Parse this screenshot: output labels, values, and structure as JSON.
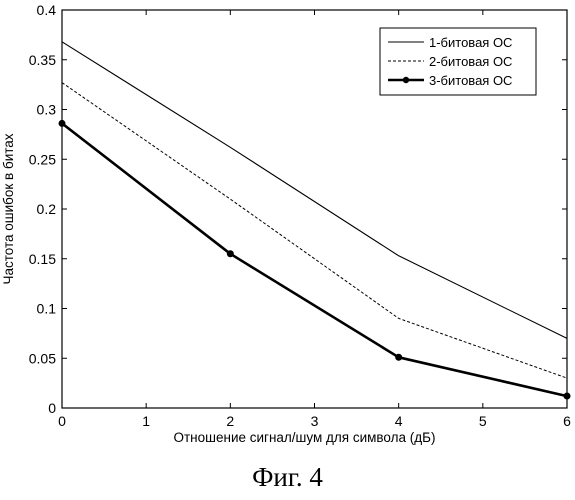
{
  "caption": "Фиг. 4",
  "chart_data": {
    "type": "line",
    "title": "",
    "xlabel": "Отношение сигнал/шум для символа (дБ)",
    "ylabel": "Частота ошибок в битах",
    "xlim": [
      0,
      6
    ],
    "ylim": [
      0,
      0.4
    ],
    "x_ticks": [
      0,
      1,
      2,
      3,
      4,
      5,
      6
    ],
    "x_tick_labels": [
      "0",
      "1",
      "2",
      "3",
      "4",
      "5",
      "6"
    ],
    "y_ticks": [
      0,
      0.05,
      0.1,
      0.15,
      0.2,
      0.25,
      0.3,
      0.35,
      0.4
    ],
    "y_tick_labels": [
      "0",
      "0.05",
      "0.1",
      "0.15",
      "0.2",
      "0.25",
      "0.3",
      "0.35",
      "0.4"
    ],
    "grid": false,
    "legend_position": "top-right",
    "series": [
      {
        "name": "1-битовая ОС",
        "line_style": "solid",
        "markers": false,
        "color": "#000000",
        "x": [
          0,
          2,
          4,
          6
        ],
        "y": [
          0.368,
          0.262,
          0.153,
          0.07
        ]
      },
      {
        "name": "2-битовая ОС",
        "line_style": "dashed",
        "markers": false,
        "color": "#000000",
        "x": [
          0,
          2,
          4,
          6
        ],
        "y": [
          0.327,
          0.21,
          0.09,
          0.03
        ]
      },
      {
        "name": "3-битовая ОС",
        "line_style": "solid-thick",
        "markers": true,
        "color": "#000000",
        "x": [
          0,
          2,
          4,
          6
        ],
        "y": [
          0.286,
          0.155,
          0.051,
          0.012
        ]
      }
    ]
  }
}
